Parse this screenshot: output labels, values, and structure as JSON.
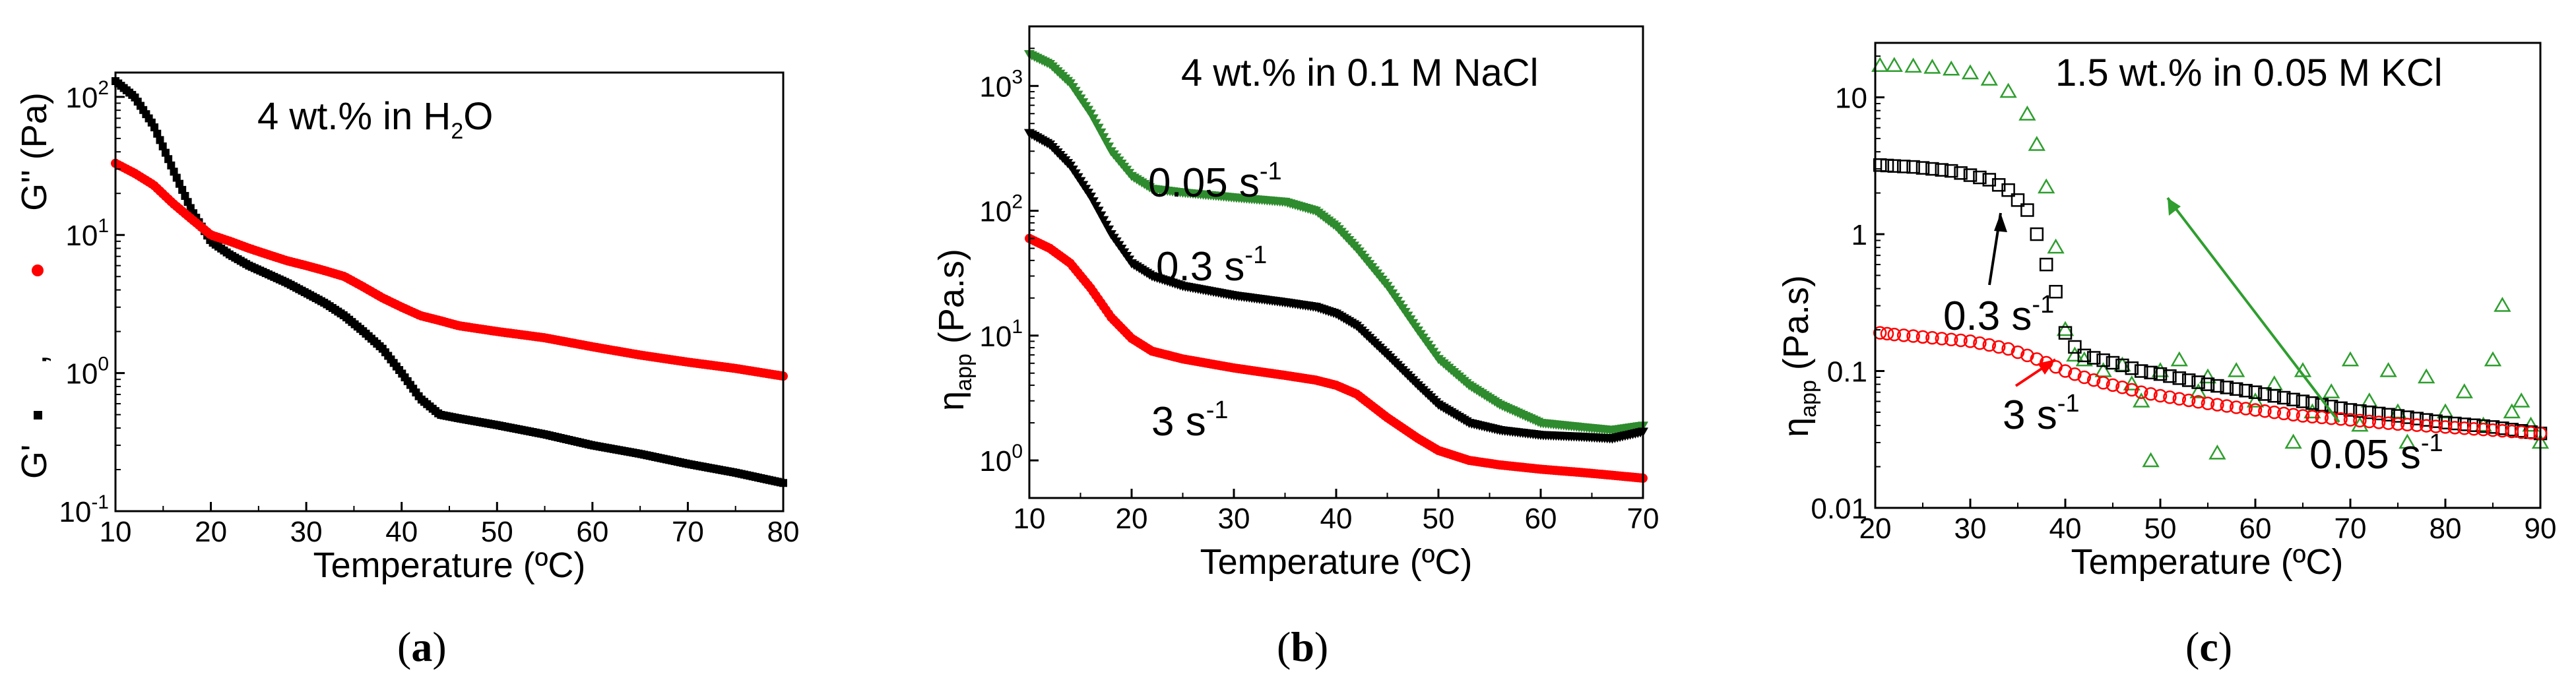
{
  "chart_data": [
    {
      "id": "a",
      "type": "scatter",
      "caption": "(a)",
      "title": "4 wt.% in H",
      "title_sub": "2",
      "title_tail": "O",
      "xlabel": "Temperature (ºC)",
      "ylabel_parts": [
        "G'",
        ",",
        "G'' (Pa)"
      ],
      "xlim": [
        10,
        80
      ],
      "ylim": [
        0.1,
        150
      ],
      "yscale": "log",
      "x_ticks": [
        10,
        20,
        30,
        40,
        50,
        60,
        70,
        80
      ],
      "y_ticks": [
        0.1,
        1,
        10,
        100
      ],
      "y_tick_bases": [
        "10",
        "10",
        "10",
        "10"
      ],
      "y_tick_exps": [
        "-1",
        "0",
        "1",
        "2"
      ],
      "grid": false,
      "series": [
        {
          "name": "G'",
          "marker": "square",
          "color": "#000000",
          "points": [
            [
              10,
              130
            ],
            [
              12,
              100
            ],
            [
              14,
              62
            ],
            [
              16,
              30
            ],
            [
              18,
              15
            ],
            [
              20,
              9
            ],
            [
              22,
              7.2
            ],
            [
              24,
              6
            ],
            [
              26,
              5.2
            ],
            [
              28,
              4.5
            ],
            [
              30,
              3.8
            ],
            [
              32,
              3.2
            ],
            [
              34,
              2.6
            ],
            [
              36,
              2.0
            ],
            [
              38,
              1.5
            ],
            [
              40,
              1.0
            ],
            [
              42,
              0.65
            ],
            [
              44,
              0.5
            ],
            [
              46,
              0.47
            ],
            [
              50,
              0.42
            ],
            [
              55,
              0.36
            ],
            [
              60,
              0.3
            ],
            [
              65,
              0.26
            ],
            [
              70,
              0.22
            ],
            [
              75,
              0.19
            ],
            [
              80,
              0.16
            ]
          ]
        },
        {
          "name": "G''",
          "marker": "circle",
          "color": "#ff0000",
          "points": [
            [
              10,
              33
            ],
            [
              12,
              28
            ],
            [
              14,
              23
            ],
            [
              16,
              17
            ],
            [
              18,
              13
            ],
            [
              20,
              10
            ],
            [
              22,
              9
            ],
            [
              24,
              8
            ],
            [
              26,
              7.2
            ],
            [
              28,
              6.5
            ],
            [
              30,
              6
            ],
            [
              32,
              5.5
            ],
            [
              34,
              5
            ],
            [
              36,
              4.2
            ],
            [
              38,
              3.5
            ],
            [
              40,
              3
            ],
            [
              42,
              2.6
            ],
            [
              44,
              2.4
            ],
            [
              46,
              2.2
            ],
            [
              50,
              2.0
            ],
            [
              55,
              1.8
            ],
            [
              60,
              1.55
            ],
            [
              65,
              1.35
            ],
            [
              70,
              1.2
            ],
            [
              75,
              1.08
            ],
            [
              80,
              0.95
            ]
          ]
        }
      ]
    },
    {
      "id": "b",
      "type": "scatter",
      "caption": "(b)",
      "title": "4 wt.% in 0.1 M NaCl",
      "xlabel": "Temperature (ºC)",
      "ylabel": "η",
      "ylabel_sub": "app",
      "ylabel_tail": " (Pa.s)",
      "xlim": [
        10,
        70
      ],
      "ylim": [
        0.5,
        3000
      ],
      "yscale": "log",
      "x_ticks": [
        10,
        20,
        30,
        40,
        50,
        60,
        70
      ],
      "y_ticks": [
        1,
        10,
        100,
        1000
      ],
      "y_tick_bases": [
        "10",
        "10",
        "10",
        "10"
      ],
      "y_tick_exps": [
        "0",
        "1",
        "2",
        "3"
      ],
      "grid": false,
      "series": [
        {
          "name": "0.05 s",
          "name_sup": "-1",
          "marker": "triangle-down",
          "color": "#2e8b2e",
          "points": [
            [
              10,
              1800
            ],
            [
              12,
              1500
            ],
            [
              14,
              1050
            ],
            [
              16,
              600
            ],
            [
              18,
              300
            ],
            [
              20,
              190
            ],
            [
              22,
              150
            ],
            [
              25,
              140
            ],
            [
              30,
              128
            ],
            [
              35,
              118
            ],
            [
              38,
              100
            ],
            [
              40,
              75
            ],
            [
              42,
              50
            ],
            [
              45,
              25
            ],
            [
              48,
              11
            ],
            [
              50,
              6.5
            ],
            [
              53,
              4
            ],
            [
              56,
              2.8
            ],
            [
              60,
              2.0
            ],
            [
              64,
              1.85
            ],
            [
              67,
              1.75
            ],
            [
              70,
              1.9
            ]
          ]
        },
        {
          "name": "0.3 s",
          "name_sup": "-1",
          "marker": "triangle-down",
          "color": "#000000",
          "points": [
            [
              10,
              420
            ],
            [
              12,
              340
            ],
            [
              14,
              230
            ],
            [
              16,
              130
            ],
            [
              18,
              65
            ],
            [
              20,
              38
            ],
            [
              22,
              30
            ],
            [
              25,
              25
            ],
            [
              30,
              21
            ],
            [
              35,
              18.5
            ],
            [
              38,
              17
            ],
            [
              40,
              15
            ],
            [
              42,
              12
            ],
            [
              45,
              7
            ],
            [
              48,
              4
            ],
            [
              50,
              2.8
            ],
            [
              53,
              2.0
            ],
            [
              56,
              1.75
            ],
            [
              60,
              1.6
            ],
            [
              64,
              1.55
            ],
            [
              67,
              1.5
            ],
            [
              70,
              1.7
            ]
          ]
        },
        {
          "name": "3 s",
          "name_sup": "-1",
          "marker": "circle",
          "color": "#ff0000",
          "points": [
            [
              10,
              60
            ],
            [
              12,
              50
            ],
            [
              14,
              38
            ],
            [
              16,
              24
            ],
            [
              18,
              14
            ],
            [
              20,
              9.5
            ],
            [
              22,
              7.5
            ],
            [
              25,
              6.5
            ],
            [
              30,
              5.5
            ],
            [
              35,
              4.8
            ],
            [
              38,
              4.4
            ],
            [
              40,
              4.0
            ],
            [
              42,
              3.4
            ],
            [
              45,
              2.2
            ],
            [
              48,
              1.5
            ],
            [
              50,
              1.2
            ],
            [
              53,
              1.0
            ],
            [
              56,
              0.92
            ],
            [
              60,
              0.85
            ],
            [
              64,
              0.8
            ],
            [
              67,
              0.76
            ],
            [
              70,
              0.72
            ]
          ]
        }
      ]
    },
    {
      "id": "c",
      "type": "scatter",
      "caption": "(c)",
      "title": "1.5 wt.% in 0.05 M KCl",
      "xlabel": "Temperature (ºC)",
      "ylabel": "η",
      "ylabel_sub": "app",
      "ylabel_tail": " (Pa.s)",
      "xlim": [
        20,
        90
      ],
      "ylim": [
        0.01,
        25
      ],
      "yscale": "log",
      "x_ticks": [
        20,
        30,
        40,
        50,
        60,
        70,
        80,
        90
      ],
      "y_ticks": [
        0.01,
        0.1,
        1,
        10
      ],
      "y_tick_labels": [
        "0.01",
        "0.1",
        "1",
        "10"
      ],
      "grid": false,
      "series": [
        {
          "name": "0.05 s",
          "name_sup": "-1",
          "marker": "triangle-up-open",
          "color": "#2e9e2e",
          "points": [
            [
              20.5,
              17
            ],
            [
              22,
              17
            ],
            [
              24,
              16.8
            ],
            [
              26,
              16.5
            ],
            [
              28,
              16
            ],
            [
              30,
              15
            ],
            [
              32,
              13.5
            ],
            [
              34,
              11
            ],
            [
              36,
              7.5
            ],
            [
              37,
              4.5
            ],
            [
              38,
              2.2
            ],
            [
              39,
              0.8
            ],
            [
              40,
              0.2
            ],
            [
              41,
              0.13
            ],
            [
              42,
              0.12
            ],
            [
              44,
              0.1
            ],
            [
              46,
              0.11
            ],
            [
              47,
              0.08
            ],
            [
              48,
              0.06
            ],
            [
              49,
              0.022
            ],
            [
              50,
              0.1
            ],
            [
              52,
              0.12
            ],
            [
              54,
              0.07
            ],
            [
              55,
              0.09
            ],
            [
              56,
              0.025
            ],
            [
              58,
              0.1
            ],
            [
              60,
              0.06
            ],
            [
              62,
              0.08
            ],
            [
              64,
              0.03
            ],
            [
              65,
              0.1
            ],
            [
              66,
              0.05
            ],
            [
              68,
              0.07
            ],
            [
              70,
              0.12
            ],
            [
              71,
              0.04
            ],
            [
              72,
              0.06
            ],
            [
              74,
              0.1
            ],
            [
              75,
              0.05
            ],
            [
              76,
              0.03
            ],
            [
              78,
              0.09
            ],
            [
              80,
              0.05
            ],
            [
              82,
              0.07
            ],
            [
              84,
              0.04
            ],
            [
              85,
              0.12
            ],
            [
              86,
              0.3
            ],
            [
              87,
              0.05
            ],
            [
              88,
              0.06
            ],
            [
              89,
              0.04
            ],
            [
              90,
              0.03
            ]
          ]
        },
        {
          "name": "0.3 s",
          "name_sup": "-1",
          "marker": "square-open",
          "color": "#000000",
          "points": [
            [
              20.5,
              3.2
            ],
            [
              22,
              3.15
            ],
            [
              24,
              3.1
            ],
            [
              26,
              3.0
            ],
            [
              28,
              2.9
            ],
            [
              30,
              2.7
            ],
            [
              32,
              2.5
            ],
            [
              34,
              2.1
            ],
            [
              36,
              1.5
            ],
            [
              37,
              1.0
            ],
            [
              38,
              0.6
            ],
            [
              39,
              0.38
            ],
            [
              40,
              0.19
            ],
            [
              41,
              0.15
            ],
            [
              42,
              0.13
            ],
            [
              44,
              0.12
            ],
            [
              46,
              0.11
            ],
            [
              48,
              0.1
            ],
            [
              50,
              0.095
            ],
            [
              55,
              0.08
            ],
            [
              60,
              0.07
            ],
            [
              65,
              0.06
            ],
            [
              70,
              0.052
            ],
            [
              75,
              0.047
            ],
            [
              80,
              0.042
            ],
            [
              85,
              0.039
            ],
            [
              90,
              0.035
            ]
          ]
        },
        {
          "name": "3 s",
          "name_sup": "-1",
          "marker": "circle-open",
          "color": "#ff0000",
          "points": [
            [
              20.5,
              0.19
            ],
            [
              22,
              0.185
            ],
            [
              24,
              0.18
            ],
            [
              26,
              0.175
            ],
            [
              28,
              0.17
            ],
            [
              30,
              0.165
            ],
            [
              32,
              0.155
            ],
            [
              34,
              0.145
            ],
            [
              36,
              0.13
            ],
            [
              38,
              0.115
            ],
            [
              40,
              0.1
            ],
            [
              42,
              0.09
            ],
            [
              44,
              0.082
            ],
            [
              46,
              0.076
            ],
            [
              48,
              0.07
            ],
            [
              50,
              0.066
            ],
            [
              55,
              0.058
            ],
            [
              60,
              0.052
            ],
            [
              65,
              0.047
            ],
            [
              70,
              0.044
            ],
            [
              75,
              0.041
            ],
            [
              80,
              0.039
            ],
            [
              85,
              0.037
            ],
            [
              90,
              0.035
            ]
          ]
        }
      ]
    }
  ]
}
